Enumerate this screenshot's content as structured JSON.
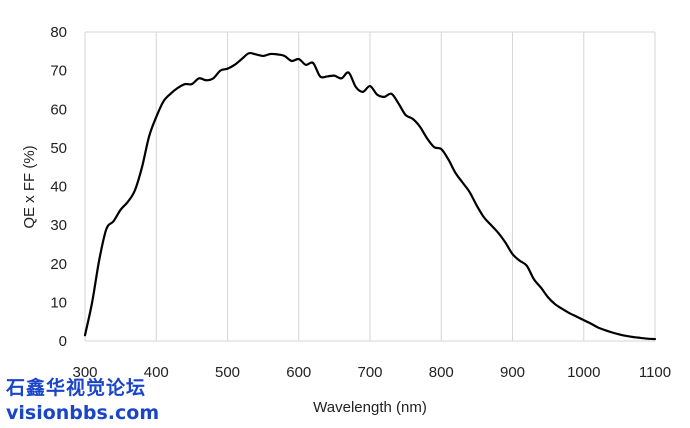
{
  "chart_data": {
    "type": "line",
    "title": "",
    "xlabel": "Wavelength (nm)",
    "ylabel": "QE x FF (%)",
    "xlim": [
      300,
      1100
    ],
    "ylim": [
      0,
      80
    ],
    "xticks": [
      300,
      400,
      500,
      600,
      700,
      800,
      900,
      1000,
      1100
    ],
    "yticks": [
      0,
      10,
      20,
      30,
      40,
      50,
      60,
      70,
      80
    ],
    "grid": "vertical",
    "legend": "none",
    "line_color": "#000000",
    "series": [
      {
        "x": [
          300,
          310,
          320,
          330,
          340,
          350,
          360,
          370,
          380,
          390,
          400,
          410,
          420,
          430,
          440,
          450,
          460,
          470,
          480,
          490,
          500,
          510,
          520,
          530,
          540,
          550,
          560,
          570,
          580,
          590,
          600,
          610,
          620,
          630,
          640,
          650,
          660,
          670,
          680,
          690,
          700,
          710,
          720,
          730,
          740,
          750,
          760,
          770,
          780,
          790,
          800,
          810,
          820,
          830,
          840,
          850,
          860,
          870,
          880,
          890,
          900,
          910,
          920,
          930,
          940,
          950,
          960,
          970,
          980,
          990,
          1000,
          1010,
          1020,
          1030,
          1040,
          1050,
          1060,
          1070,
          1080,
          1090,
          1100
        ],
        "values": [
          1.5,
          10,
          21,
          29,
          31,
          34,
          36,
          39,
          45,
          53,
          58,
          62,
          64,
          65.5,
          66.5,
          66.5,
          68,
          67.5,
          68,
          70,
          70.5,
          71.5,
          73,
          74.5,
          74.2,
          73.8,
          74.3,
          74.2,
          73.8,
          72.5,
          73,
          71.5,
          72,
          68.5,
          68.5,
          68.7,
          68,
          69.5,
          65.8,
          64.5,
          66,
          63.8,
          63.2,
          64,
          61.5,
          58.5,
          57.5,
          55.5,
          52.5,
          50.2,
          49.7,
          47,
          43.5,
          41,
          38.5,
          35,
          32,
          30,
          28,
          25.5,
          22.5,
          20.8,
          19.5,
          16,
          13.8,
          11.3,
          9.5,
          8.3,
          7.2,
          6.3,
          5.4,
          4.5,
          3.5,
          2.8,
          2.2,
          1.7,
          1.3,
          1,
          0.8,
          0.6,
          0.5
        ]
      }
    ]
  },
  "watermark": {
    "line1": "石鑫华视觉论坛",
    "line2": "visionbbs.com"
  }
}
